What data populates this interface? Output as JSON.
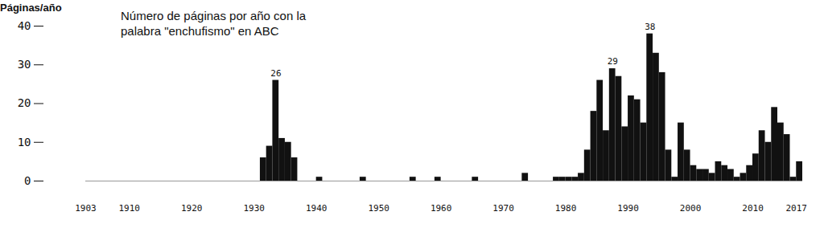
{
  "chart_data": {
    "type": "bar",
    "title": "Número de páginas por año con la palabra \"enchufismo\" en ABC",
    "y_label": "Páginas/año",
    "color": "#111111",
    "grid": false,
    "xlim": [
      1903,
      2018
    ],
    "xticks": [
      1903,
      1910,
      1920,
      1930,
      1940,
      1950,
      1960,
      1970,
      1980,
      1990,
      2000,
      2010,
      2017
    ],
    "ylim": [
      0,
      40
    ],
    "yticks": [
      0,
      10,
      20,
      30,
      40
    ],
    "x": [
      1903,
      1904,
      1905,
      1906,
      1907,
      1908,
      1909,
      1910,
      1911,
      1912,
      1913,
      1914,
      1915,
      1916,
      1917,
      1918,
      1919,
      1920,
      1921,
      1922,
      1923,
      1924,
      1925,
      1926,
      1927,
      1928,
      1929,
      1930,
      1931,
      1932,
      1933,
      1934,
      1935,
      1936,
      1937,
      1938,
      1939,
      1940,
      1941,
      1942,
      1943,
      1944,
      1945,
      1946,
      1947,
      1948,
      1949,
      1950,
      1951,
      1952,
      1953,
      1954,
      1955,
      1956,
      1957,
      1958,
      1959,
      1960,
      1961,
      1962,
      1963,
      1964,
      1965,
      1966,
      1967,
      1968,
      1969,
      1970,
      1971,
      1972,
      1973,
      1974,
      1975,
      1976,
      1977,
      1978,
      1979,
      1980,
      1981,
      1982,
      1983,
      1984,
      1985,
      1986,
      1987,
      1988,
      1989,
      1990,
      1991,
      1992,
      1993,
      1994,
      1995,
      1996,
      1997,
      1998,
      1999,
      2000,
      2001,
      2002,
      2003,
      2004,
      2005,
      2006,
      2007,
      2008,
      2009,
      2010,
      2011,
      2012,
      2013,
      2014,
      2015,
      2016,
      2017
    ],
    "values": [
      0,
      0,
      0,
      0,
      0,
      0,
      0,
      0,
      0,
      0,
      0,
      0,
      0,
      0,
      0,
      0,
      0,
      0,
      0,
      0,
      0,
      0,
      0,
      0,
      0,
      0,
      0,
      0,
      6,
      9,
      26,
      11,
      10,
      6,
      0,
      0,
      0,
      1,
      0,
      0,
      0,
      0,
      0,
      0,
      1,
      0,
      0,
      0,
      0,
      0,
      0,
      0,
      1,
      0,
      0,
      0,
      1,
      0,
      0,
      0,
      0,
      0,
      1,
      0,
      0,
      0,
      0,
      0,
      0,
      0,
      2,
      0,
      0,
      0,
      0,
      1,
      1,
      1,
      1,
      2,
      8,
      18,
      26,
      13,
      29,
      27,
      14,
      22,
      21,
      15,
      38,
      33,
      28,
      8,
      1,
      15,
      8,
      4,
      3,
      3,
      2,
      5,
      4,
      3,
      1,
      2,
      4,
      7,
      13,
      10,
      19,
      15,
      12,
      1,
      5
    ],
    "annotations": [
      {
        "x": 1933,
        "y": 26
      },
      {
        "x": 1987,
        "y": 29
      },
      {
        "x": 1993,
        "y": 38
      }
    ]
  }
}
